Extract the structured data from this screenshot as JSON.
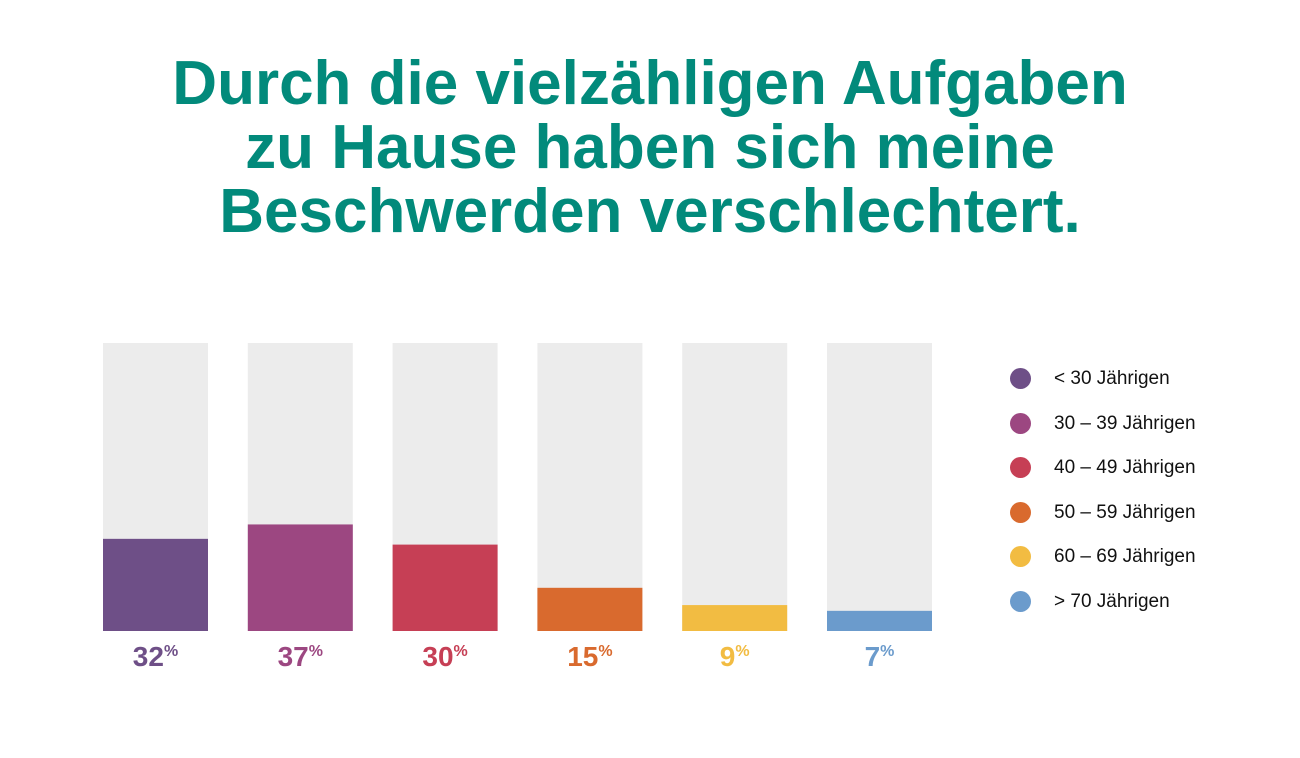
{
  "title_lines": [
    "Durch die vielzähligen Aufgaben",
    "zu Hause haben sich meine",
    "Beschwerden verschlechtert."
  ],
  "chart_data": {
    "type": "bar",
    "title": "Durch die vielzähligen Aufgaben zu Hause haben sich meine Beschwerden verschlechtert.",
    "categories": [
      "< 30 Jährigen",
      "30 – 39 Jährigen",
      "40 – 49 Jährigen",
      "50 – 59 Jährigen",
      "60 – 69 Jährigen",
      "> 70 Jährigen"
    ],
    "values": [
      32,
      37,
      30,
      15,
      9,
      7
    ],
    "unit": "%",
    "colors": [
      "#6e4f87",
      "#9c4781",
      "#c63f55",
      "#d96a2e",
      "#f2bc42",
      "#6b9bcc"
    ],
    "track_color": "#ececec",
    "ylim": [
      0,
      100
    ],
    "grid": false,
    "legend": "right"
  }
}
